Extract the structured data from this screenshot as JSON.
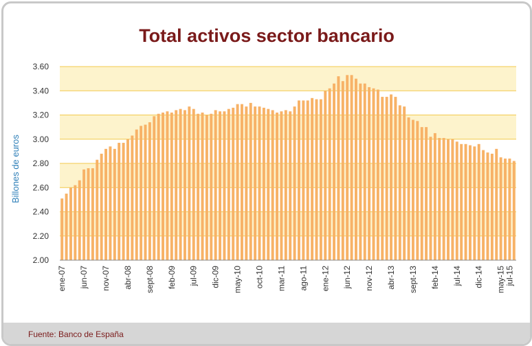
{
  "source": "Fuente: Banco de España",
  "chart_data": {
    "type": "bar",
    "title": "Total activos sector bancario",
    "xlabel": "",
    "ylabel": "Billones de euros",
    "ylim": [
      2.0,
      3.6
    ],
    "yticks": [
      "2.00",
      "2.20",
      "2.40",
      "2.60",
      "2.80",
      "3.00",
      "3.20",
      "3.40",
      "3.60"
    ],
    "grid": true,
    "bar_color": "#f7b267",
    "band_color": "#fdf3cc",
    "grid_color": "#f2c94c",
    "first_period": "ene-07",
    "xtick_labels": [
      {
        "index": 0,
        "label": "ene-07"
      },
      {
        "index": 5,
        "label": "jun-07"
      },
      {
        "index": 10,
        "label": "nov-07"
      },
      {
        "index": 15,
        "label": "abr-08"
      },
      {
        "index": 20,
        "label": "sept-08"
      },
      {
        "index": 25,
        "label": "feb-09"
      },
      {
        "index": 30,
        "label": "jul-09"
      },
      {
        "index": 35,
        "label": "dic-09"
      },
      {
        "index": 40,
        "label": "may-10"
      },
      {
        "index": 45,
        "label": "oct-10"
      },
      {
        "index": 50,
        "label": "mar-11"
      },
      {
        "index": 55,
        "label": "ago-11"
      },
      {
        "index": 60,
        "label": "ene-12"
      },
      {
        "index": 65,
        "label": "jun-12"
      },
      {
        "index": 70,
        "label": "nov-12"
      },
      {
        "index": 75,
        "label": "abr-13"
      },
      {
        "index": 80,
        "label": "sept-13"
      },
      {
        "index": 85,
        "label": "feb-14"
      },
      {
        "index": 90,
        "label": "jul-14"
      },
      {
        "index": 95,
        "label": "dic-14"
      },
      {
        "index": 100,
        "label": "may-15"
      },
      {
        "index": 102,
        "label": "jul-15"
      }
    ],
    "values": [
      2.51,
      2.55,
      2.6,
      2.62,
      2.66,
      2.75,
      2.76,
      2.76,
      2.83,
      2.88,
      2.92,
      2.94,
      2.92,
      2.97,
      2.97,
      3.0,
      3.03,
      3.08,
      3.11,
      3.12,
      3.14,
      3.19,
      3.21,
      3.22,
      3.23,
      3.22,
      3.24,
      3.25,
      3.24,
      3.27,
      3.25,
      3.21,
      3.22,
      3.2,
      3.21,
      3.24,
      3.23,
      3.23,
      3.25,
      3.26,
      3.29,
      3.29,
      3.27,
      3.3,
      3.27,
      3.27,
      3.26,
      3.25,
      3.24,
      3.22,
      3.23,
      3.24,
      3.23,
      3.27,
      3.32,
      3.32,
      3.32,
      3.34,
      3.33,
      3.33,
      3.4,
      3.42,
      3.46,
      3.52,
      3.48,
      3.53,
      3.53,
      3.5,
      3.46,
      3.46,
      3.43,
      3.42,
      3.41,
      3.35,
      3.35,
      3.37,
      3.35,
      3.28,
      3.27,
      3.18,
      3.16,
      3.15,
      3.1,
      3.1,
      3.02,
      3.05,
      3.01,
      3.01,
      3.0,
      3.0,
      2.98,
      2.96,
      2.96,
      2.95,
      2.94,
      2.96,
      2.91,
      2.89,
      2.88,
      2.92,
      2.85,
      2.84,
      2.84,
      2.82
    ]
  }
}
